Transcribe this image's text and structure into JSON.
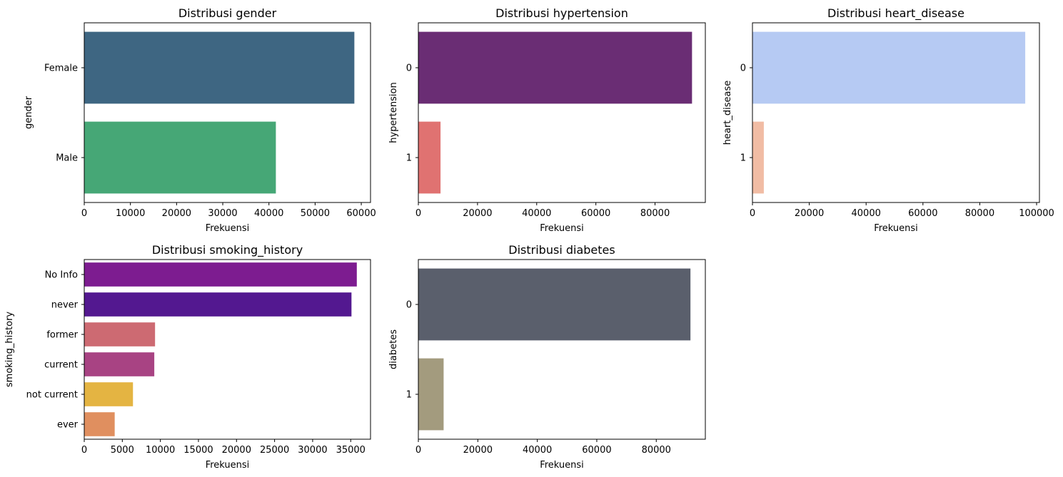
{
  "x_axis_label": "Frekuensi",
  "chart_data": [
    {
      "type": "bar",
      "orientation": "horizontal",
      "title": "Distribusi gender",
      "xlabel": "Frekuensi",
      "ylabel": "gender",
      "categories": [
        "Female",
        "Male"
      ],
      "values": [
        58500,
        41500
      ],
      "colors": [
        "#3e6682",
        "#46a776"
      ],
      "xlim": [
        0,
        62000
      ],
      "xticks": [
        0,
        10000,
        20000,
        30000,
        40000,
        50000,
        60000
      ],
      "grid": false
    },
    {
      "type": "bar",
      "orientation": "horizontal",
      "title": "Distribusi hypertension",
      "xlabel": "Frekuensi",
      "ylabel": "hypertension",
      "categories": [
        "0",
        "1"
      ],
      "values": [
        92500,
        7500
      ],
      "colors": [
        "#6a2d74",
        "#e07271"
      ],
      "xlim": [
        0,
        97000
      ],
      "xticks": [
        0,
        20000,
        40000,
        60000,
        80000
      ],
      "grid": false
    },
    {
      "type": "bar",
      "orientation": "horizontal",
      "title": "Distribusi heart_disease",
      "xlabel": "Frekuensi",
      "ylabel": "heart_disease",
      "categories": [
        "0",
        "1"
      ],
      "values": [
        96000,
        4000
      ],
      "colors": [
        "#b6caf3",
        "#f1bca4"
      ],
      "xlim": [
        0,
        101000
      ],
      "xticks": [
        0,
        20000,
        40000,
        60000,
        80000,
        100000
      ],
      "grid": false
    },
    {
      "type": "bar",
      "orientation": "horizontal",
      "title": "Distribusi smoking_history",
      "xlabel": "Frekuensi",
      "ylabel": "smoking_history",
      "categories": [
        "No Info",
        "never",
        "former",
        "current",
        "not current",
        "ever"
      ],
      "values": [
        35800,
        35100,
        9300,
        9200,
        6400,
        4000
      ],
      "colors": [
        "#7d1c90",
        "#531890",
        "#cd6a72",
        "#a84383",
        "#e4b442",
        "#e08f5f"
      ],
      "xlim": [
        0,
        37600
      ],
      "xticks": [
        0,
        5000,
        10000,
        15000,
        20000,
        25000,
        30000,
        35000
      ],
      "grid": false
    },
    {
      "type": "bar",
      "orientation": "horizontal",
      "title": "Distribusi diabetes",
      "xlabel": "Frekuensi",
      "ylabel": "diabetes",
      "categories": [
        "0",
        "1"
      ],
      "values": [
        91500,
        8500
      ],
      "colors": [
        "#5a5f6c",
        "#a39b7e"
      ],
      "xlim": [
        0,
        96500
      ],
      "xticks": [
        0,
        20000,
        40000,
        60000,
        80000
      ],
      "grid": false
    }
  ]
}
